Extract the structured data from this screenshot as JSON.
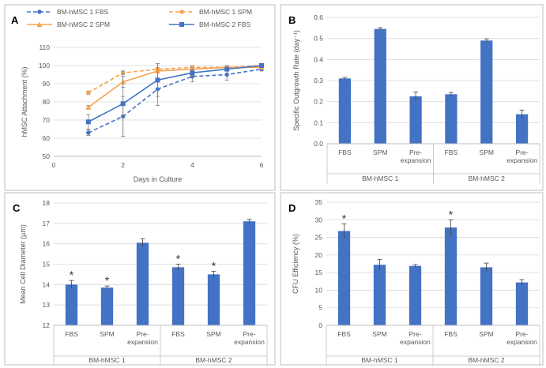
{
  "chart_data": [
    {
      "id": "A",
      "type": "line",
      "panel_label": "A",
      "xlabel": "Days in Culture",
      "ylabel": "hMSC Attachment (%)",
      "xlim": [
        0,
        6
      ],
      "ylim": [
        50,
        110
      ],
      "xticks": [
        "0",
        "2",
        "4",
        "6"
      ],
      "yticks": [
        "50",
        "60",
        "70",
        "80",
        "90",
        "100",
        "110"
      ],
      "legend_position": "top",
      "series": [
        {
          "name": "BM-hMSC 1 FBS",
          "color": "#4472C4",
          "dashed": true,
          "marker": "circle",
          "x": [
            1,
            2,
            3,
            4,
            5,
            6
          ],
          "values": [
            63,
            72,
            87,
            94,
            95,
            98
          ],
          "err": [
            1.5,
            11,
            9,
            3,
            3,
            1
          ]
        },
        {
          "name": "BM-hMSC 1 SPM",
          "color": "#F5A34E",
          "dashed": true,
          "marker": "circle",
          "x": [
            1,
            2,
            3,
            4,
            5,
            6
          ],
          "values": [
            85,
            96,
            98,
            99,
            99,
            100
          ],
          "err": [
            1,
            1,
            1,
            1,
            1,
            1
          ]
        },
        {
          "name": "BM-hMSC 2 SPM",
          "color": "#F5A34E",
          "dashed": false,
          "marker": "triangle",
          "x": [
            1,
            2,
            3,
            4,
            5,
            6
          ],
          "values": [
            77,
            91,
            97,
            98,
            99,
            99
          ],
          "err": [
            1,
            3,
            4,
            1,
            1,
            1
          ]
        },
        {
          "name": "BM-hMSC 2 FBS",
          "color": "#4472C4",
          "dashed": false,
          "marker": "square",
          "x": [
            1,
            2,
            3,
            4,
            5,
            6
          ],
          "values": [
            69,
            79,
            92,
            96,
            98,
            100
          ],
          "err": [
            4,
            18,
            9,
            2,
            1,
            1
          ]
        }
      ]
    },
    {
      "id": "B",
      "type": "bar",
      "panel_label": "B",
      "ylabel": "Specific Outgrowth Rate (day⁻¹)",
      "ylim": [
        0,
        0.6
      ],
      "yticks": [
        "0.0",
        "0.1",
        "0.2",
        "0.3",
        "0.4",
        "0.5",
        "0.6"
      ],
      "categories": [
        "FBS",
        "SPM",
        "Pre-|expansion",
        "FBS",
        "SPM",
        "Pre-|expansion"
      ],
      "groups": [
        "BM-hMSC 1",
        "BM-hMSC 2"
      ],
      "values": [
        0.31,
        0.545,
        0.225,
        0.235,
        0.49,
        0.14
      ],
      "err": [
        0.005,
        0.006,
        0.02,
        0.008,
        0.008,
        0.02
      ],
      "sig": [
        false,
        false,
        false,
        false,
        false,
        false
      ],
      "color": "#4472C4"
    },
    {
      "id": "C",
      "type": "bar",
      "panel_label": "C",
      "ylabel": "Mean Cell Diameter  (µm)",
      "ylim": [
        12,
        18
      ],
      "yticks": [
        "12",
        "13",
        "14",
        "15",
        "16",
        "17",
        "18"
      ],
      "categories": [
        "FBS",
        "SPM",
        "Pre-|expansion",
        "FBS",
        "SPM",
        "Pre-|expansion"
      ],
      "groups": [
        "BM-hMSC 1",
        "BM-hMSC 2"
      ],
      "values": [
        14.0,
        13.85,
        16.05,
        14.85,
        14.5,
        17.1
      ],
      "err": [
        0.2,
        0.08,
        0.2,
        0.15,
        0.15,
        0.1
      ],
      "sig": [
        true,
        true,
        false,
        true,
        true,
        false
      ],
      "color": "#4472C4"
    },
    {
      "id": "D",
      "type": "bar",
      "panel_label": "D",
      "ylabel": "CFU Efficiency (%)",
      "ylim": [
        0,
        35
      ],
      "yticks": [
        "0",
        "5",
        "10",
        "15",
        "20",
        "25",
        "30",
        "35"
      ],
      "categories": [
        "FBS",
        "SPM",
        "Pre-|expansion",
        "FBS",
        "SPM",
        "Pre-|expansion"
      ],
      "groups": [
        "BM-hMSC 1",
        "BM-hMSC 2"
      ],
      "values": [
        26.8,
        17.2,
        16.9,
        27.8,
        16.5,
        12.2
      ],
      "err": [
        2.0,
        1.5,
        0.4,
        2.2,
        1.2,
        0.8
      ],
      "sig": [
        true,
        false,
        false,
        true,
        false,
        false
      ],
      "color": "#4472C4"
    }
  ]
}
